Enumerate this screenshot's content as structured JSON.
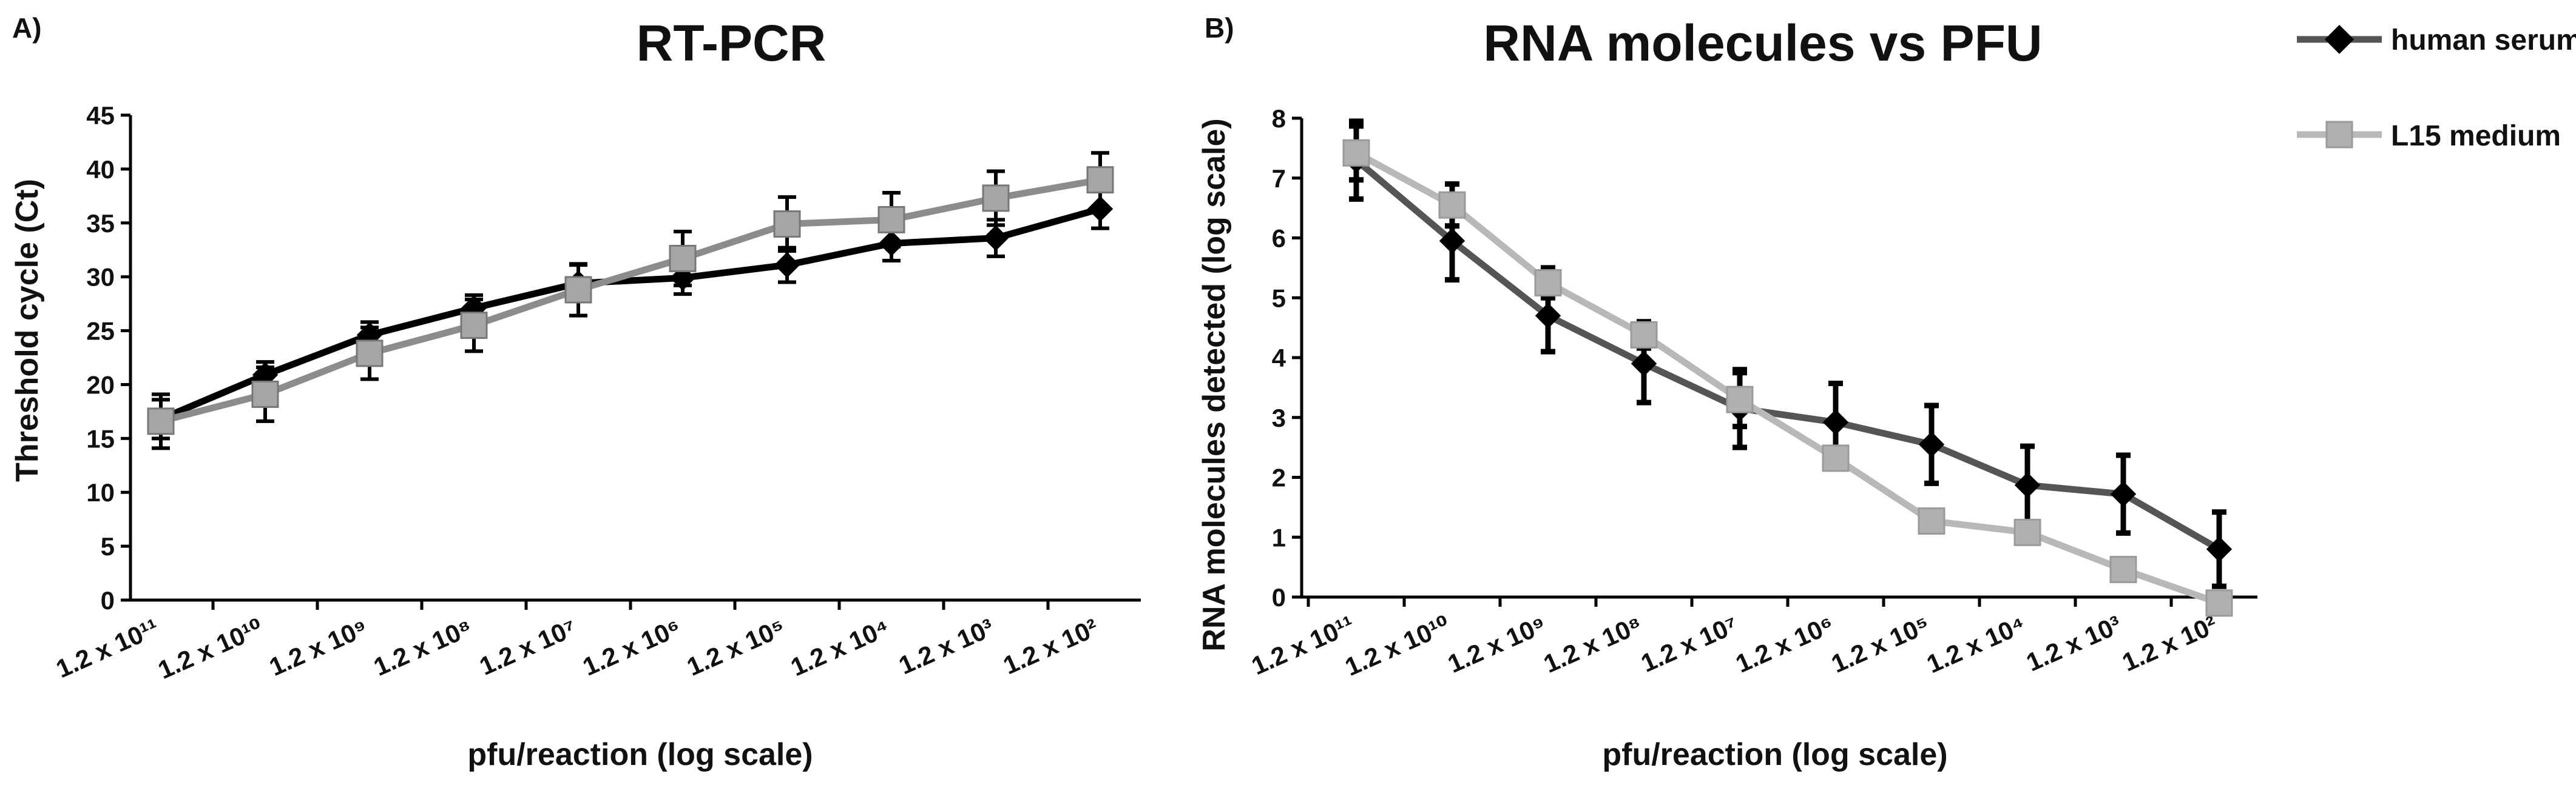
{
  "chart_data": [
    {
      "type": "line",
      "panel_label": "A)",
      "title": "RT-PCR",
      "xlabel": "pfu/reaction (log scale)",
      "ylabel": "Threshold cycle (Ct)",
      "ylim": [
        0,
        45
      ],
      "yticks": [
        0,
        5,
        10,
        15,
        20,
        25,
        30,
        35,
        40,
        45
      ],
      "categories": [
        "1.2 x 10^11",
        "1.2 x 10^10",
        "1.2 x 10^9",
        "1.2 x 10^8",
        "1.2 x 10^7",
        "1.2 x 10^6",
        "1.2 x 10^5",
        "1.2 x 10^4",
        "1.2 x 10^3",
        "1.2 x 10^2"
      ],
      "series": [
        {
          "name": "human serum",
          "color": "#000000",
          "marker": "diamond",
          "values": [
            16.8,
            20.9,
            24.6,
            27.1,
            29.4,
            29.9,
            31.1,
            33.1,
            33.6,
            36.3
          ],
          "errors": [
            1.8,
            1.2,
            1.2,
            1.2,
            1.7,
            1.5,
            1.6,
            1.6,
            1.7,
            1.8
          ]
        },
        {
          "name": "L15 medium",
          "color": "#8c8c8c",
          "marker": "square",
          "values": [
            16.6,
            19.1,
            22.9,
            25.5,
            28.8,
            31.7,
            34.9,
            35.3,
            37.3,
            39.0
          ],
          "errors": [
            2.5,
            2.5,
            2.4,
            2.4,
            2.4,
            2.5,
            2.5,
            2.5,
            2.5,
            2.5
          ]
        }
      ]
    },
    {
      "type": "line",
      "panel_label": "B)",
      "title": "RNA molecules vs PFU",
      "xlabel": "pfu/reaction (log scale)",
      "ylabel": "RNA molecules detected (log scale)",
      "ylim": [
        0,
        8
      ],
      "yticks": [
        0,
        1,
        2,
        3,
        4,
        5,
        6,
        7,
        8
      ],
      "categories": [
        "1.2 x 10^11",
        "1.2 x 10^10",
        "1.2 x 10^9",
        "1.2 x 10^8",
        "1.2 x 10^7",
        "1.2 x 10^6",
        "1.2 x 10^5",
        "1.2 x 10^4",
        "1.2 x 10^3",
        "1.2 x 10^2"
      ],
      "legend_position": "right",
      "series": [
        {
          "name": "human serum",
          "color": "#555555",
          "marker": "diamond",
          "values": [
            7.3,
            5.95,
            4.7,
            3.9,
            3.15,
            2.92,
            2.55,
            1.87,
            1.72,
            0.8
          ],
          "errors": [
            0.65,
            0.65,
            0.6,
            0.65,
            0.65,
            0.65,
            0.65,
            0.65,
            0.65,
            0.62
          ]
        },
        {
          "name": "L15 medium",
          "color": "#b8b8b8",
          "marker": "square",
          "values": [
            7.42,
            6.55,
            5.25,
            4.38,
            3.3,
            2.32,
            1.27,
            1.08,
            0.46,
            -0.1
          ],
          "errors": [
            0.45,
            0.35,
            0.25,
            0.22,
            0.45,
            0,
            0,
            0,
            0,
            0
          ]
        }
      ]
    }
  ]
}
